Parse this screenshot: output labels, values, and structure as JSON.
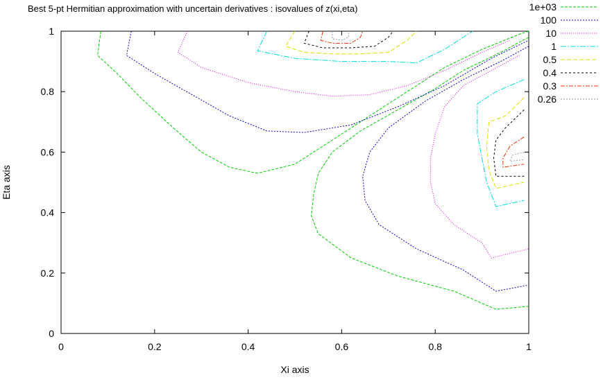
{
  "chart_data": {
    "type": "line",
    "title": "Best 5-pt Hermitian approximation with uncertain derivatives : isovalues of z(xi,eta)",
    "xlabel": "Xi axis",
    "ylabel": "Eta axis",
    "xlim": [
      0,
      1
    ],
    "ylim": [
      0,
      1
    ],
    "xticks": [
      "0",
      "0.2",
      "0.4",
      "0.6",
      "0.8",
      "1"
    ],
    "yticks": [
      "0",
      "0.2",
      "0.4",
      "0.6",
      "0.8",
      "1"
    ],
    "grid": false,
    "legend_position": "top-right",
    "series": [
      {
        "name": "1e+03",
        "color": "#00cc00",
        "dash": "4,2",
        "paths": [
          [
            [
              0.085,
              1.0
            ],
            [
              0.078,
              0.92
            ],
            [
              0.12,
              0.86
            ],
            [
              0.17,
              0.78
            ],
            [
              0.24,
              0.68
            ],
            [
              0.3,
              0.6
            ],
            [
              0.36,
              0.55
            ],
            [
              0.42,
              0.53
            ],
            [
              0.5,
              0.56
            ],
            [
              0.58,
              0.64
            ],
            [
              0.66,
              0.72
            ],
            [
              0.74,
              0.8
            ],
            [
              0.82,
              0.88
            ],
            [
              0.9,
              0.94
            ],
            [
              0.98,
              0.99
            ],
            [
              1.0,
              1.0
            ]
          ],
          [
            [
              1.0,
              0.98
            ],
            [
              0.94,
              0.93
            ],
            [
              0.86,
              0.87
            ],
            [
              0.8,
              0.81
            ],
            [
              0.72,
              0.74
            ],
            [
              0.64,
              0.67
            ],
            [
              0.58,
              0.6
            ],
            [
              0.55,
              0.53
            ],
            [
              0.54,
              0.46
            ],
            [
              0.535,
              0.39
            ],
            [
              0.55,
              0.33
            ],
            [
              0.62,
              0.25
            ],
            [
              0.72,
              0.19
            ],
            [
              0.84,
              0.14
            ],
            [
              0.93,
              0.08
            ],
            [
              1.0,
              0.09
            ]
          ]
        ]
      },
      {
        "name": "100",
        "color": "#0000cc",
        "dash": "2,2",
        "paths": [
          [
            [
              0.15,
              1.0
            ],
            [
              0.14,
              0.92
            ],
            [
              0.2,
              0.86
            ],
            [
              0.28,
              0.79
            ],
            [
              0.36,
              0.72
            ],
            [
              0.44,
              0.67
            ],
            [
              0.52,
              0.665
            ],
            [
              0.62,
              0.69
            ],
            [
              0.72,
              0.75
            ],
            [
              0.82,
              0.82
            ],
            [
              0.92,
              0.91
            ],
            [
              1.0,
              0.97
            ]
          ],
          [
            [
              1.0,
              0.95
            ],
            [
              0.94,
              0.9
            ],
            [
              0.86,
              0.84
            ],
            [
              0.78,
              0.77
            ],
            [
              0.7,
              0.68
            ],
            [
              0.66,
              0.6
            ],
            [
              0.645,
              0.52
            ],
            [
              0.65,
              0.44
            ],
            [
              0.68,
              0.36
            ],
            [
              0.76,
              0.28
            ],
            [
              0.86,
              0.21
            ],
            [
              0.93,
              0.14
            ],
            [
              1.0,
              0.16
            ]
          ]
        ]
      },
      {
        "name": "10",
        "color": "#dd00dd",
        "dash": "1,2",
        "paths": [
          [
            [
              0.27,
              1.0
            ],
            [
              0.25,
              0.93
            ],
            [
              0.3,
              0.88
            ],
            [
              0.4,
              0.83
            ],
            [
              0.5,
              0.8
            ],
            [
              0.58,
              0.785
            ],
            [
              0.66,
              0.79
            ],
            [
              0.74,
              0.82
            ],
            [
              0.82,
              0.87
            ],
            [
              0.9,
              0.93
            ],
            [
              0.96,
              0.97
            ]
          ],
          [
            [
              0.98,
              0.92
            ],
            [
              0.92,
              0.87
            ],
            [
              0.86,
              0.82
            ],
            [
              0.82,
              0.75
            ],
            [
              0.8,
              0.66
            ],
            [
              0.79,
              0.58
            ],
            [
              0.79,
              0.5
            ],
            [
              0.8,
              0.43
            ],
            [
              0.84,
              0.36
            ],
            [
              0.9,
              0.3
            ],
            [
              0.92,
              0.25
            ],
            [
              1.0,
              0.28
            ]
          ]
        ]
      },
      {
        "name": "1",
        "color": "#00dddd",
        "dash": "8,2,2,2",
        "paths": [
          [
            [
              0.44,
              1.0
            ],
            [
              0.42,
              0.935
            ],
            [
              0.5,
              0.91
            ],
            [
              0.6,
              0.9
            ],
            [
              0.7,
              0.9
            ],
            [
              0.76,
              0.895
            ],
            [
              0.82,
              0.94
            ],
            [
              0.88,
              1.0
            ]
          ],
          [
            [
              0.99,
              0.84
            ],
            [
              0.93,
              0.8
            ],
            [
              0.89,
              0.76
            ],
            [
              0.89,
              0.66
            ],
            [
              0.9,
              0.58
            ],
            [
              0.91,
              0.5
            ],
            [
              0.93,
              0.42
            ],
            [
              0.99,
              0.44
            ]
          ]
        ]
      },
      {
        "name": "0.5",
        "color": "#dddd00",
        "dash": "6,3",
        "paths": [
          [
            [
              0.5,
              1.0
            ],
            [
              0.48,
              0.95
            ],
            [
              0.52,
              0.93
            ],
            [
              0.58,
              0.925
            ],
            [
              0.64,
              0.925
            ],
            [
              0.7,
              0.93
            ],
            [
              0.74,
              0.97
            ],
            [
              0.76,
              1.0
            ]
          ],
          [
            [
              0.99,
              0.78
            ],
            [
              0.95,
              0.72
            ],
            [
              0.915,
              0.7
            ],
            [
              0.91,
              0.62
            ],
            [
              0.915,
              0.54
            ],
            [
              0.93,
              0.48
            ],
            [
              0.99,
              0.5
            ]
          ]
        ]
      },
      {
        "name": "0.4",
        "color": "#000000",
        "dash": "3,3",
        "paths": [
          [
            [
              0.53,
              1.0
            ],
            [
              0.52,
              0.96
            ],
            [
              0.56,
              0.945
            ],
            [
              0.62,
              0.945
            ],
            [
              0.67,
              0.95
            ],
            [
              0.7,
              0.98
            ],
            [
              0.71,
              1.0
            ]
          ],
          [
            [
              0.99,
              0.74
            ],
            [
              0.95,
              0.68
            ],
            [
              0.93,
              0.64
            ],
            [
              0.925,
              0.58
            ],
            [
              0.93,
              0.52
            ],
            [
              0.99,
              0.52
            ]
          ]
        ]
      },
      {
        "name": "0.3",
        "color": "#dd3300",
        "dash": "6,2,2,2",
        "paths": [
          [
            [
              0.56,
              1.0
            ],
            [
              0.555,
              0.97
            ],
            [
              0.58,
              0.96
            ],
            [
              0.62,
              0.96
            ],
            [
              0.64,
              0.98
            ],
            [
              0.645,
              1.0
            ]
          ],
          [
            [
              0.99,
              0.65
            ],
            [
              0.96,
              0.62
            ],
            [
              0.945,
              0.58
            ],
            [
              0.945,
              0.55
            ],
            [
              0.99,
              0.56
            ]
          ]
        ]
      },
      {
        "name": "0.26",
        "color": "#999999",
        "dash": "2,2",
        "paths": [
          [
            [
              0.58,
              1.0
            ],
            [
              0.58,
              0.975
            ],
            [
              0.6,
              0.97
            ],
            [
              0.615,
              0.98
            ],
            [
              0.615,
              1.0
            ]
          ],
          [
            [
              0.99,
              0.6
            ],
            [
              0.965,
              0.59
            ],
            [
              0.96,
              0.57
            ],
            [
              0.99,
              0.575
            ]
          ]
        ]
      }
    ]
  }
}
